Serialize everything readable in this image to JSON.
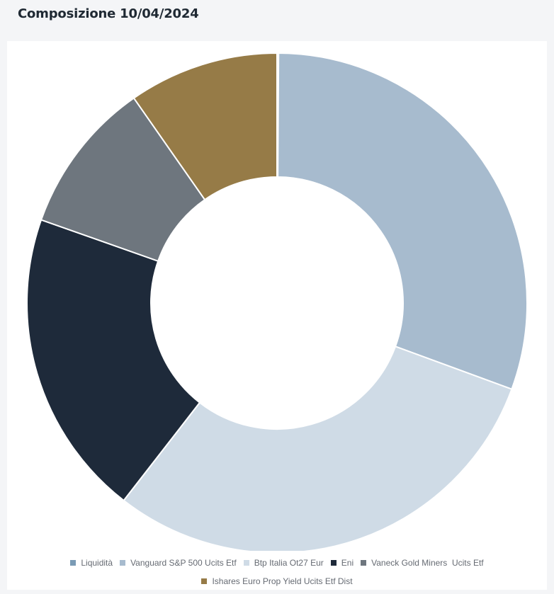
{
  "header": {
    "title": "Composizione 10/04/2024"
  },
  "chart_data": {
    "type": "pie",
    "donut": true,
    "legend_position": "bottom",
    "categories": [
      "Liquidità",
      "Vanguard S&P 500 Ucits Etf",
      "Btp Italia Ot27 Eur",
      "Eni",
      "Vaneck Gold Miners  Ucits Etf",
      "Ishares Euro Prop Yield Ucits Etf Dist"
    ],
    "values": [
      0.1,
      30.5,
      29.9,
      19.9,
      9.9,
      9.7
    ],
    "colors": [
      "#7a9bb5",
      "#a7bbce",
      "#cfdbe6",
      "#1e2a3a",
      "#6e767e",
      "#967b47"
    ]
  }
}
